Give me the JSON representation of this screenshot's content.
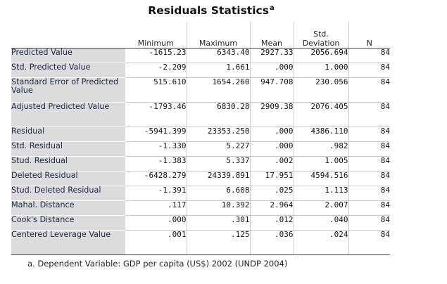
{
  "title": "Residuals Statistics",
  "title_superscript": "a",
  "columns": [
    "Minimum",
    "Maximum",
    "Mean",
    "Std. Deviation",
    "N"
  ],
  "rows": [
    {
      "label": "Predicted Value",
      "values": [
        "-1615.23",
        "6343.40",
        "2927.33",
        "2056.694",
        "84"
      ]
    },
    {
      "label": "Std. Predicted Value",
      "values": [
        "-2.209",
        "1.661",
        ".000",
        "1.000",
        "84"
      ]
    },
    {
      "label": "Standard Error of Predicted Value",
      "values": [
        "515.610",
        "1654.260",
        "947.708",
        "230.056",
        "84"
      ]
    },
    {
      "label": "Adjusted Predicted Value",
      "values": [
        "-1793.46",
        "6830.28",
        "2909.38",
        "2076.405",
        "84"
      ]
    },
    {
      "label": "Residual",
      "values": [
        "-5941.399",
        "23353.250",
        ".000",
        "4386.110",
        "84"
      ]
    },
    {
      "label": "Std. Residual",
      "values": [
        "-1.330",
        "5.227",
        ".000",
        ".982",
        "84"
      ]
    },
    {
      "label": "Stud. Residual",
      "values": [
        "-1.383",
        "5.337",
        ".002",
        "1.005",
        "84"
      ]
    },
    {
      "label": "Deleted Residual",
      "values": [
        "-6428.279",
        "24339.891",
        "17.951",
        "4594.516",
        "84"
      ]
    },
    {
      "label": "Stud. Deleted Residual",
      "values": [
        "-1.391",
        "6.608",
        ".025",
        "1.113",
        "84"
      ]
    },
    {
      "label": "Mahal. Distance",
      "values": [
        ".117",
        "10.392",
        "2.964",
        "2.007",
        "84"
      ]
    },
    {
      "label": "Cook's Distance",
      "values": [
        ".000",
        ".301",
        ".012",
        ".040",
        "84"
      ]
    },
    {
      "label": "Centered Leverage Value",
      "values": [
        ".001",
        ".125",
        ".036",
        ".024",
        "84"
      ]
    }
  ],
  "footnote": "a. Dependent Variable: GDP per capita (US$) 2002 (UNDP 2004)"
}
